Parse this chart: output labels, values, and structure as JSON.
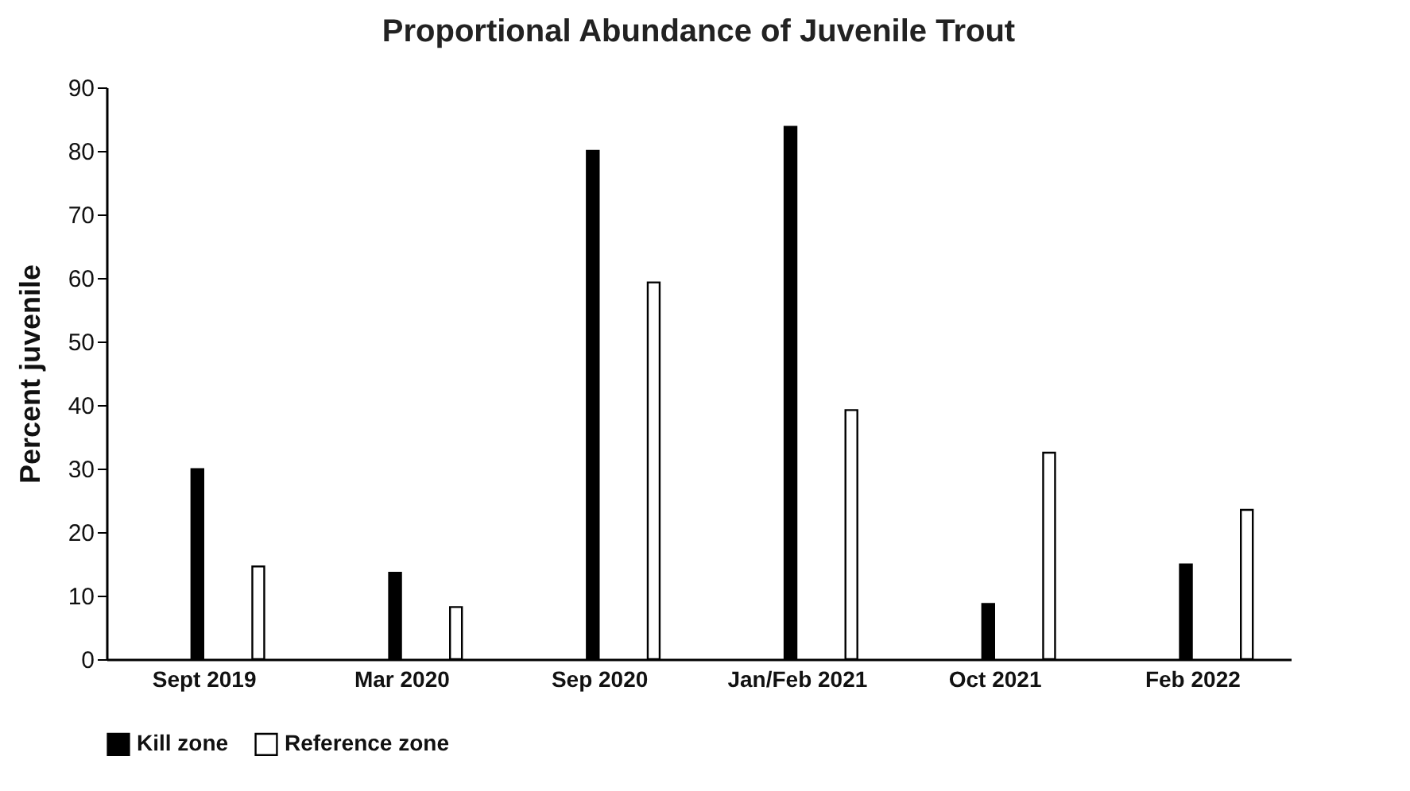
{
  "chart_data": {
    "type": "bar",
    "title": "Proportional Abundance of Juvenile Trout",
    "ylabel": "Percent juvenile",
    "categories": [
      "Sept 2019",
      "Mar 2020",
      "Sep 2020",
      "Jan/Feb 2021",
      "Oct 2021",
      "Feb 2022"
    ],
    "series": [
      {
        "name": "Kill zone",
        "color": "#000000",
        "values": [
          29.9,
          13.6,
          80,
          83.8,
          8.7,
          14.9
        ]
      },
      {
        "name": "Reference zone",
        "color": "#ffffff",
        "values": [
          14.6,
          8.2,
          59.3,
          39.2,
          32.5,
          23.5
        ]
      }
    ],
    "ylim": [
      0,
      90
    ],
    "yticks": [
      0,
      10,
      20,
      30,
      40,
      50,
      60,
      70,
      80,
      90
    ],
    "grid": false,
    "legend": "bottom"
  }
}
